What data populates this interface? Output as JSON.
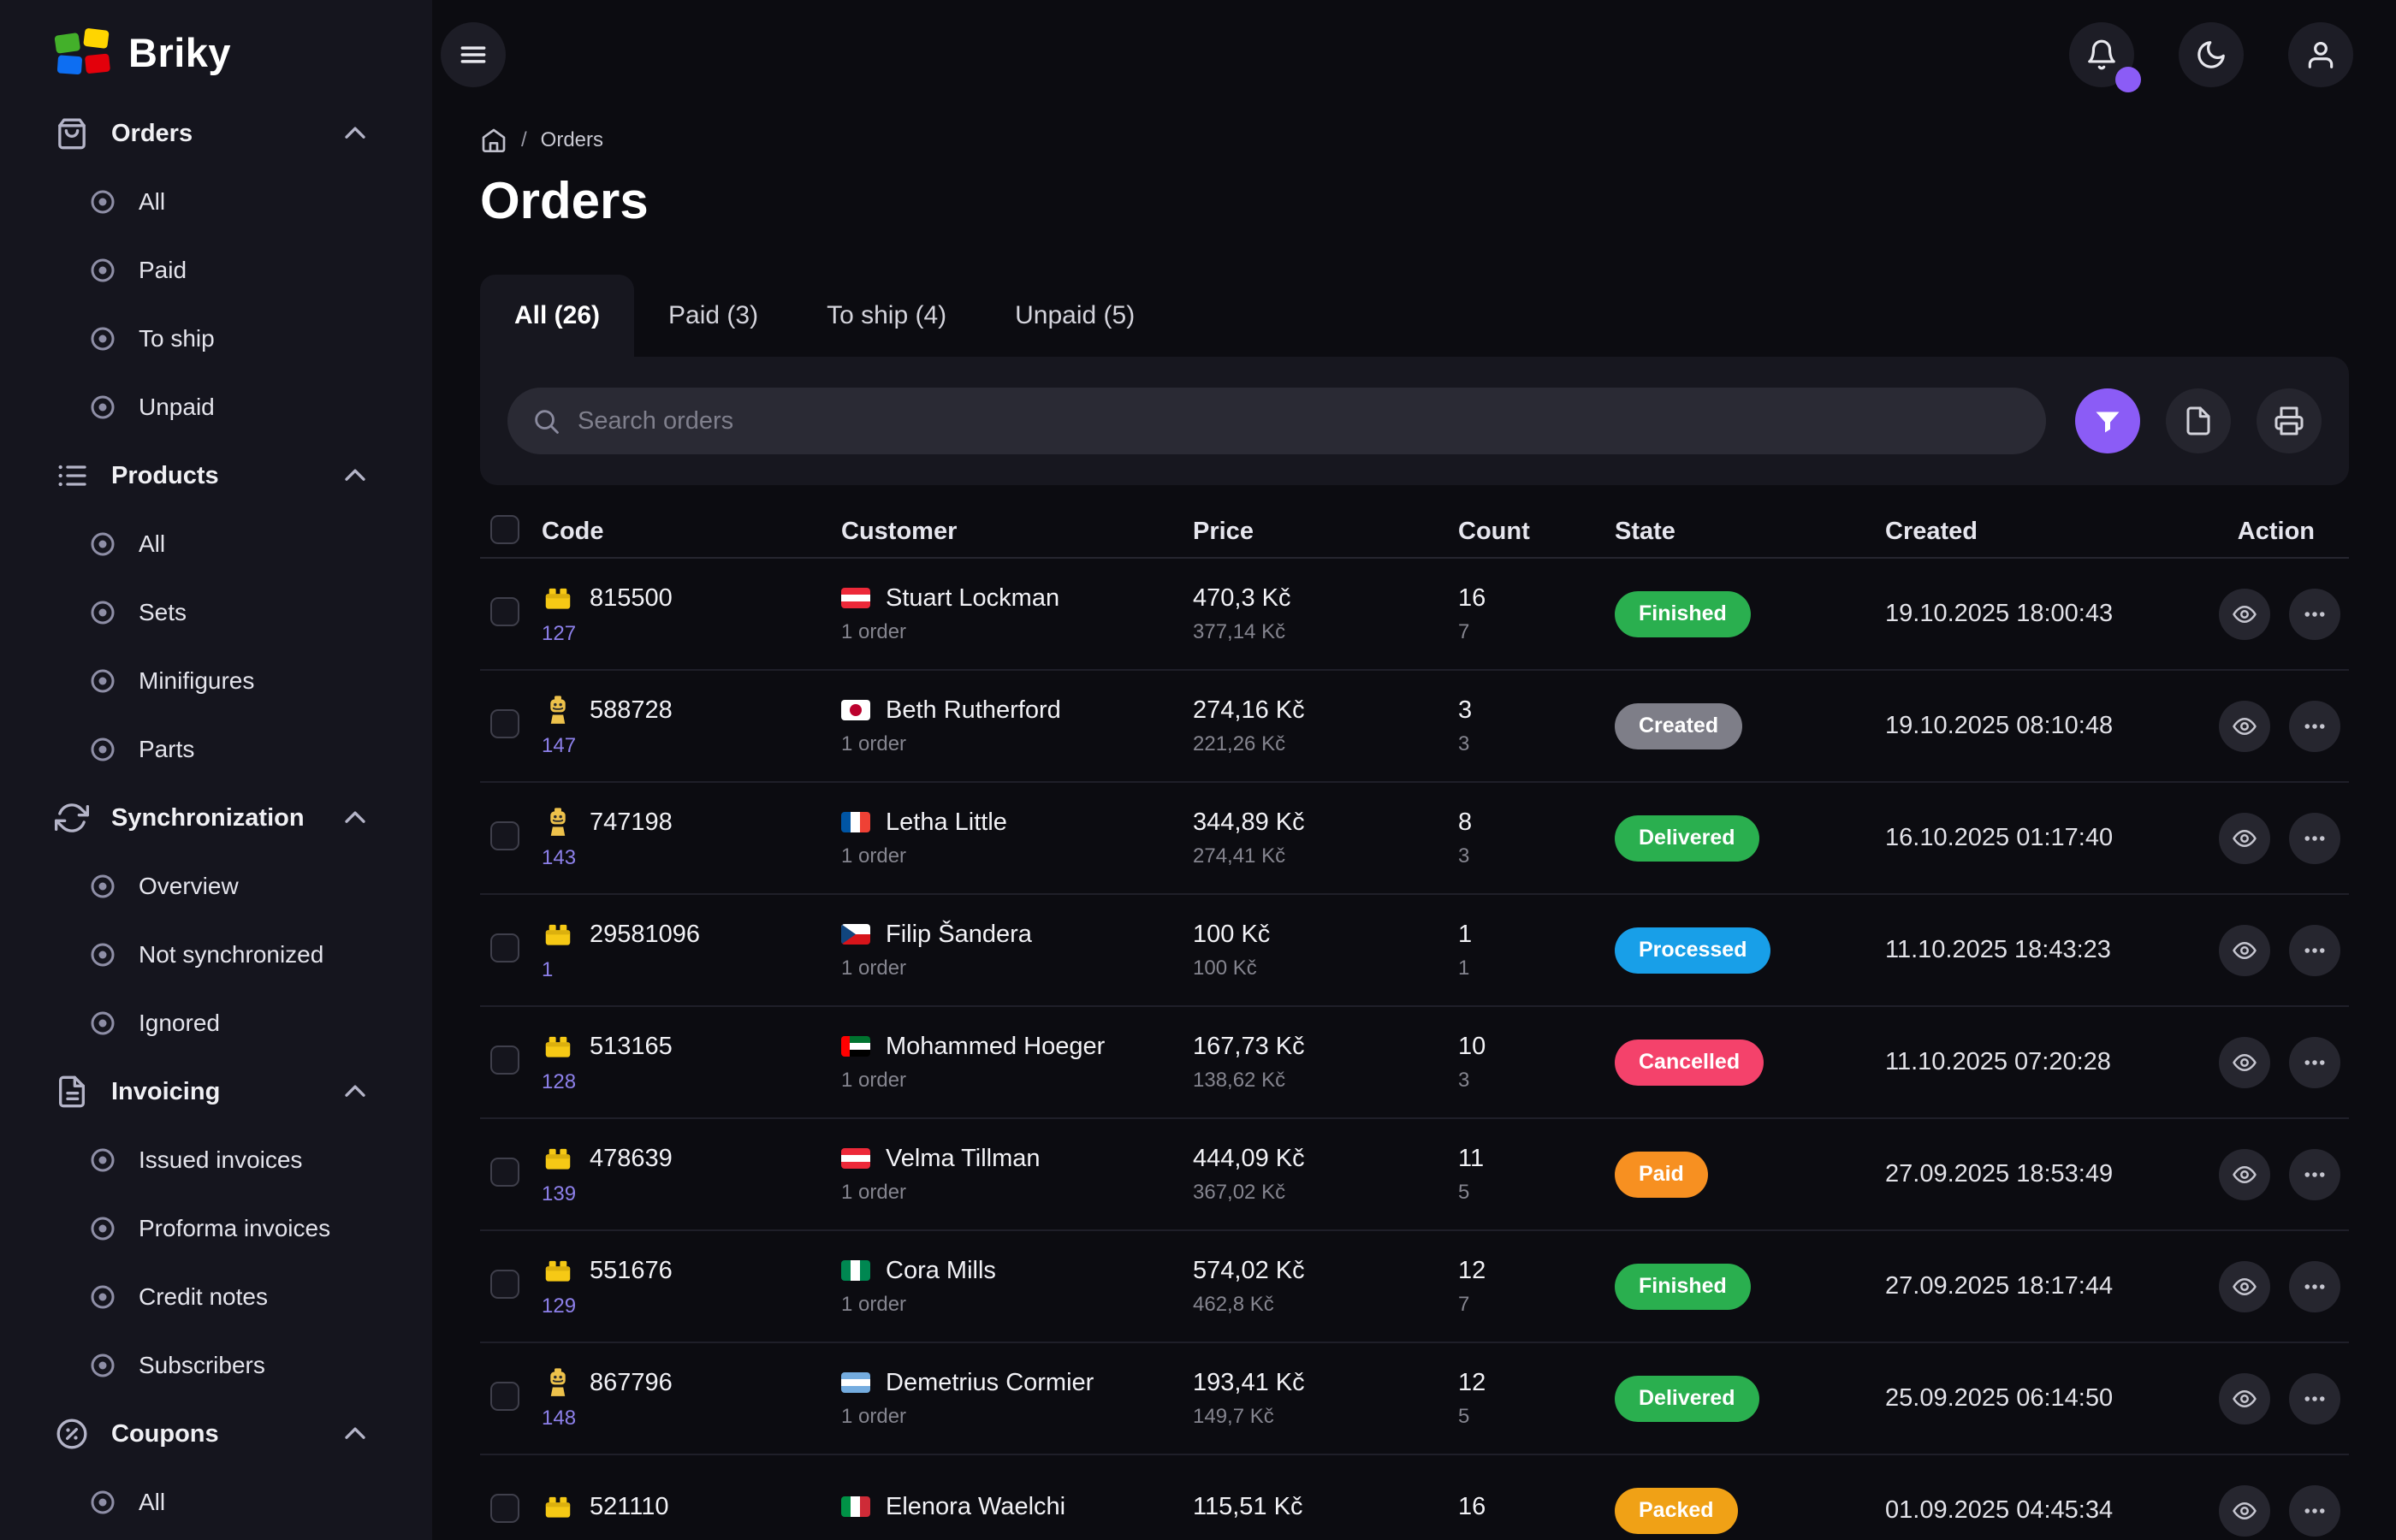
{
  "app": {
    "name": "Briky",
    "logo_icon": "lego-bricks-icon"
  },
  "topbar": {
    "hamburger_icon": "hamburger-menu-icon",
    "bell_icon": "bell-icon",
    "theme_icon": "moon-icon",
    "account_icon": "user-icon",
    "notification_dot_color": "#8b5cf6"
  },
  "sidebar": {
    "sections": [
      {
        "label": "Orders",
        "icon": "shopping-bag-icon",
        "expanded": true,
        "items": [
          "All",
          "Paid",
          "To ship",
          "Unpaid"
        ]
      },
      {
        "label": "Products",
        "icon": "list-icon",
        "expanded": true,
        "items": [
          "All",
          "Sets",
          "Minifigures",
          "Parts"
        ]
      },
      {
        "label": "Synchronization",
        "icon": "sync-icon",
        "expanded": true,
        "items": [
          "Overview",
          "Not synchronized",
          "Ignored"
        ]
      },
      {
        "label": "Invoicing",
        "icon": "file-text-icon",
        "expanded": true,
        "items": [
          "Issued invoices",
          "Proforma invoices",
          "Credit notes",
          "Subscribers"
        ]
      },
      {
        "label": "Coupons",
        "icon": "percent-circle-icon",
        "expanded": true,
        "items": [
          "All"
        ]
      }
    ]
  },
  "breadcrumb": {
    "home_icon": "home-icon",
    "separator": "/",
    "current": "Orders"
  },
  "page_title": "Orders",
  "tabs": [
    {
      "label": "All (26)",
      "active": true
    },
    {
      "label": "Paid (3)",
      "active": false
    },
    {
      "label": "To ship (4)",
      "active": false
    },
    {
      "label": "Unpaid (5)",
      "active": false
    }
  ],
  "search": {
    "placeholder": "Search orders",
    "icon": "search-icon"
  },
  "toolbar": [
    {
      "name": "filter",
      "icon": "funnel-icon",
      "color": "#8b5cf6"
    },
    {
      "name": "export-document",
      "icon": "document-icon",
      "color": ""
    },
    {
      "name": "print",
      "icon": "printer-icon",
      "color": ""
    }
  ],
  "table": {
    "headers": [
      "Code",
      "Customer",
      "Price",
      "Count",
      "State",
      "Created",
      "Action"
    ],
    "rows": [
      {
        "icon": "lego-brick-icon",
        "code": "815500",
        "code_sub": "127",
        "flag": {
          "country": "austria",
          "kind": "h3",
          "colors": [
            "#ed2939",
            "#ffffff",
            "#ed2939"
          ]
        },
        "customer": "Stuart Lockman",
        "customer_sub": "1 order",
        "price": "470,3 Kč",
        "price_sub": "377,14 Kč",
        "count": "16",
        "count_sub": "7",
        "state": "Finished",
        "state_color": "#2aaf4f",
        "created": "19.10.2025 18:00:43"
      },
      {
        "icon": "minifigure-icon",
        "code": "588728",
        "code_sub": "147",
        "flag": {
          "country": "japan",
          "kind": "disc",
          "colors": [
            "#ffffff",
            "#bc002d"
          ]
        },
        "customer": "Beth Rutherford",
        "customer_sub": "1 order",
        "price": "274,16 Kč",
        "price_sub": "221,26 Kč",
        "count": "3",
        "count_sub": "3",
        "state": "Created",
        "state_color": "#7e7e88",
        "created": "19.10.2025 08:10:48"
      },
      {
        "icon": "minifigure-icon",
        "code": "747198",
        "code_sub": "143",
        "flag": {
          "country": "france",
          "kind": "v3",
          "colors": [
            "#0055a4",
            "#ffffff",
            "#ef4135"
          ]
        },
        "customer": "Letha Little",
        "customer_sub": "1 order",
        "price": "344,89 Kč",
        "price_sub": "274,41 Kč",
        "count": "8",
        "count_sub": "3",
        "state": "Delivered",
        "state_color": "#2aaf4f",
        "created": "16.10.2025 01:17:40"
      },
      {
        "icon": "lego-brick-icon",
        "code": "29581096",
        "code_sub": "1",
        "flag": {
          "country": "czechia",
          "kind": "czech",
          "colors": [
            "#ffffff",
            "#d7141a",
            "#11457e"
          ]
        },
        "customer": "Filip Šandera",
        "customer_sub": "1 order",
        "price": "100 Kč",
        "price_sub": "100 Kč",
        "count": "1",
        "count_sub": "1",
        "state": "Processed",
        "state_color": "#189fe8",
        "created": "11.10.2025 18:43:23"
      },
      {
        "icon": "lego-brick-icon",
        "code": "513165",
        "code_sub": "128",
        "flag": {
          "country": "uae",
          "kind": "uae",
          "colors": [
            "#00732f",
            "#ffffff",
            "#000000",
            "#ff0000"
          ]
        },
        "customer": "Mohammed Hoeger",
        "customer_sub": "1 order",
        "price": "167,73 Kč",
        "price_sub": "138,62 Kč",
        "count": "10",
        "count_sub": "3",
        "state": "Cancelled",
        "state_color": "#f4426b",
        "created": "11.10.2025 07:20:28"
      },
      {
        "icon": "lego-brick-icon",
        "code": "478639",
        "code_sub": "139",
        "flag": {
          "country": "austria",
          "kind": "h3",
          "colors": [
            "#ed2939",
            "#ffffff",
            "#ed2939"
          ]
        },
        "customer": "Velma Tillman",
        "customer_sub": "1 order",
        "price": "444,09 Kč",
        "price_sub": "367,02 Kč",
        "count": "11",
        "count_sub": "5",
        "state": "Paid",
        "state_color": "#f79021",
        "created": "27.09.2025 18:53:49"
      },
      {
        "icon": "lego-brick-icon",
        "code": "551676",
        "code_sub": "129",
        "flag": {
          "country": "nigeria",
          "kind": "v3",
          "colors": [
            "#008751",
            "#ffffff",
            "#008751"
          ]
        },
        "customer": "Cora Mills",
        "customer_sub": "1 order",
        "price": "574,02 Kč",
        "price_sub": "462,8 Kč",
        "count": "12",
        "count_sub": "7",
        "state": "Finished",
        "state_color": "#2aaf4f",
        "created": "27.09.2025 18:17:44"
      },
      {
        "icon": "minifigure-icon",
        "code": "867796",
        "code_sub": "148",
        "flag": {
          "country": "argentina",
          "kind": "h3",
          "colors": [
            "#74acdf",
            "#ffffff",
            "#74acdf"
          ]
        },
        "customer": "Demetrius Cormier",
        "customer_sub": "1 order",
        "price": "193,41 Kč",
        "price_sub": "149,7 Kč",
        "count": "12",
        "count_sub": "5",
        "state": "Delivered",
        "state_color": "#2aaf4f",
        "created": "25.09.2025 06:14:50"
      },
      {
        "icon": "lego-brick-icon",
        "code": "521110",
        "code_sub": "",
        "flag": {
          "country": "italy",
          "kind": "v3",
          "colors": [
            "#009246",
            "#ffffff",
            "#ce2b37"
          ]
        },
        "customer": "Elenora Waelchi",
        "customer_sub": "",
        "price": "115,51 Kč",
        "price_sub": "",
        "count": "16",
        "count_sub": "",
        "state": "Packed",
        "state_color": "#f0a116",
        "created": "01.09.2025 04:45:34"
      }
    ]
  },
  "colors": {
    "accent": "#8b5cf6",
    "state_finished": "#2aaf4f",
    "state_created": "#7e7e88",
    "state_delivered": "#2aaf4f",
    "state_processed": "#189fe8",
    "state_cancelled": "#f4426b",
    "state_paid": "#f79021",
    "state_packed": "#f0a116"
  }
}
